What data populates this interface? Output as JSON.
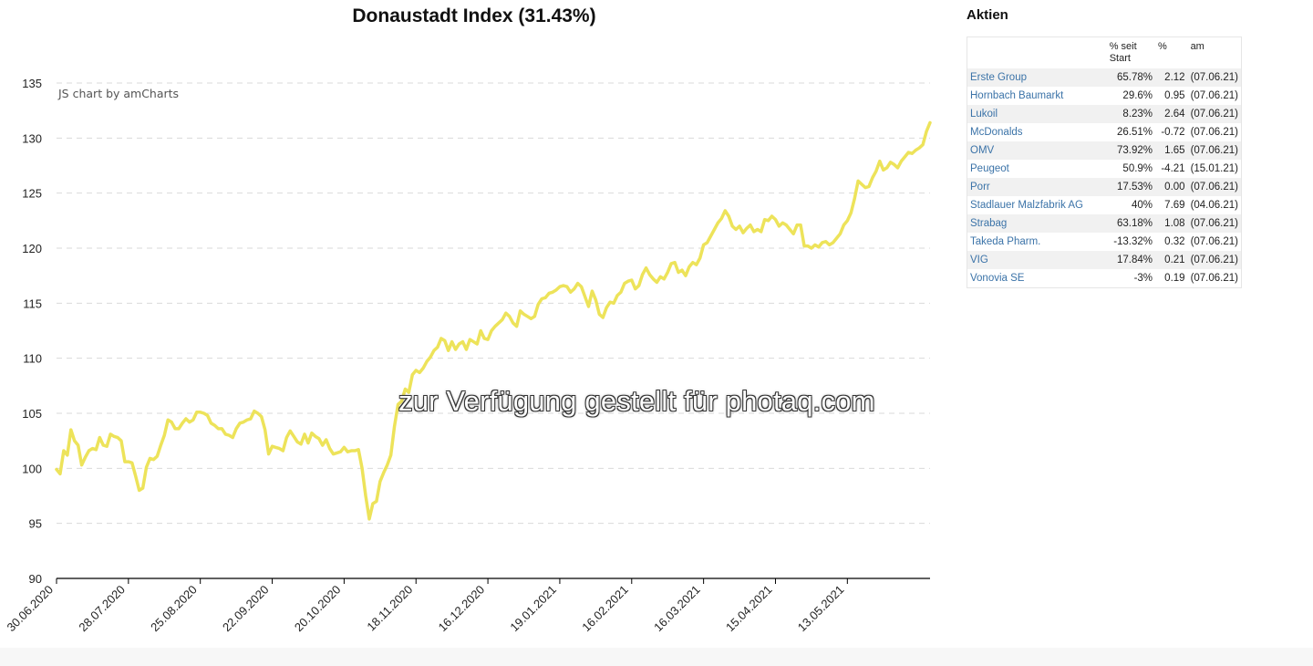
{
  "chart_data": {
    "type": "line",
    "title": "Donaustadt Index (31.43%)",
    "credit": "JS chart by amCharts",
    "ylim": [
      90,
      135
    ],
    "y_ticks": [
      90,
      95,
      100,
      105,
      110,
      115,
      120,
      125,
      130,
      135
    ],
    "grid": true,
    "x_ticks": [
      "30.06.2020",
      "28.07.2020",
      "25.08.2020",
      "22.09.2020",
      "20.10.2020",
      "18.11.2020",
      "16.12.2020",
      "19.01.2021",
      "16.02.2021",
      "16.03.2021",
      "15.04.2021",
      "13.05.2021"
    ],
    "x_tick_index": [
      0,
      20,
      40,
      60,
      80,
      100,
      120,
      140,
      160,
      180,
      200,
      220
    ],
    "line_color": "#ede35a",
    "values": [
      99.9,
      99.5,
      101.6,
      101.2,
      103.5,
      102.5,
      102.1,
      100.3,
      101.0,
      101.6,
      101.8,
      101.7,
      102.8,
      102.1,
      102.0,
      103.1,
      102.9,
      102.8,
      102.5,
      100.6,
      100.6,
      100.5,
      99.3,
      98.0,
      98.2,
      100.1,
      100.9,
      100.8,
      101.1,
      102.1,
      103.0,
      104.4,
      104.2,
      103.6,
      103.6,
      104.1,
      104.5,
      104.2,
      104.4,
      105.1,
      105.1,
      105.0,
      104.8,
      104.1,
      103.9,
      103.6,
      103.6,
      103.1,
      103.0,
      102.8,
      103.6,
      104.1,
      104.2,
      104.4,
      104.5,
      105.2,
      105.0,
      104.7,
      103.5,
      101.3,
      102.0,
      101.9,
      101.8,
      101.6,
      102.8,
      103.4,
      102.9,
      102.4,
      102.2,
      103.1,
      102.3,
      103.2,
      102.9,
      102.7,
      102.1,
      102.6,
      101.8,
      101.3,
      101.4,
      101.5,
      101.9,
      101.5,
      101.6,
      101.6,
      101.7,
      100.0,
      97.5,
      95.4,
      96.8,
      97.0,
      98.8,
      99.6,
      100.3,
      101.2,
      103.8,
      105.8,
      106.1,
      107.2,
      106.9,
      108.5,
      108.9,
      108.7,
      109.1,
      109.7,
      110.1,
      110.7,
      111.0,
      111.8,
      111.6,
      110.7,
      111.5,
      110.8,
      111.3,
      111.5,
      110.8,
      111.7,
      111.5,
      111.3,
      112.5,
      111.8,
      111.7,
      112.5,
      112.9,
      113.2,
      113.5,
      114.1,
      113.8,
      113.2,
      112.9,
      114.3,
      114.0,
      113.8,
      113.6,
      113.8,
      114.9,
      115.4,
      115.5,
      115.9,
      116.0,
      116.2,
      116.5,
      116.6,
      116.5,
      116.0,
      116.3,
      116.8,
      116.5,
      115.6,
      114.7,
      116.1,
      115.3,
      114.0,
      113.7,
      114.6,
      115.1,
      115.0,
      115.7,
      116.0,
      116.8,
      117.0,
      117.1,
      116.3,
      116.6,
      117.6,
      118.2,
      117.6,
      117.2,
      116.9,
      117.4,
      117.2,
      117.8,
      118.6,
      118.7,
      117.8,
      118.0,
      117.5,
      118.3,
      118.7,
      118.5,
      119.1,
      120.3,
      120.5,
      121.1,
      121.7,
      122.3,
      122.7,
      123.4,
      122.9,
      122.0,
      121.7,
      122.0,
      121.4,
      121.8,
      122.1,
      121.5,
      121.7,
      121.5,
      122.6,
      122.5,
      122.9,
      122.6,
      122.0,
      122.3,
      122.1,
      121.7,
      121.3,
      122.1,
      122.1,
      120.2,
      120.2,
      120.0,
      120.3,
      120.1,
      120.5,
      120.6,
      120.3,
      120.5,
      120.9,
      121.3,
      122.1,
      122.5,
      123.2,
      124.5,
      126.1,
      125.8,
      125.5,
      125.6,
      126.4,
      127.0,
      127.9,
      127.1,
      127.3,
      127.8,
      127.6,
      127.3,
      127.9,
      128.3,
      128.7,
      128.6,
      128.9,
      129.1,
      129.4,
      130.6,
      131.4
    ]
  },
  "watermark": "zur Verfügung gestellt für photaq.com",
  "panel": {
    "title": "Aktien",
    "columns": [
      "",
      "% seit Start",
      "%",
      "am"
    ],
    "rows": [
      {
        "name": "Erste Group",
        "since": "65.78%",
        "pct": "2.12",
        "date": "(07.06.21)"
      },
      {
        "name": "Hornbach Baumarkt",
        "since": "29.6%",
        "pct": "0.95",
        "date": "(07.06.21)"
      },
      {
        "name": "Lukoil",
        "since": "8.23%",
        "pct": "2.64",
        "date": "(07.06.21)"
      },
      {
        "name": "McDonalds",
        "since": "26.51%",
        "pct": "-0.72",
        "date": "(07.06.21)"
      },
      {
        "name": "OMV",
        "since": "73.92%",
        "pct": "1.65",
        "date": "(07.06.21)"
      },
      {
        "name": "Peugeot",
        "since": "50.9%",
        "pct": "-4.21",
        "date": "(15.01.21)"
      },
      {
        "name": "Porr",
        "since": "17.53%",
        "pct": "0.00",
        "date": "(07.06.21)"
      },
      {
        "name": "Stadlauer Malzfabrik AG",
        "since": "40%",
        "pct": "7.69",
        "date": "(04.06.21)"
      },
      {
        "name": "Strabag",
        "since": "63.18%",
        "pct": "1.08",
        "date": "(07.06.21)"
      },
      {
        "name": "Takeda Pharm.",
        "since": "-13.32%",
        "pct": "0.32",
        "date": "(07.06.21)"
      },
      {
        "name": "VIG",
        "since": "17.84%",
        "pct": "0.21",
        "date": "(07.06.21)"
      },
      {
        "name": "Vonovia SE",
        "since": "-3%",
        "pct": "0.19",
        "date": "(07.06.21)"
      }
    ]
  }
}
